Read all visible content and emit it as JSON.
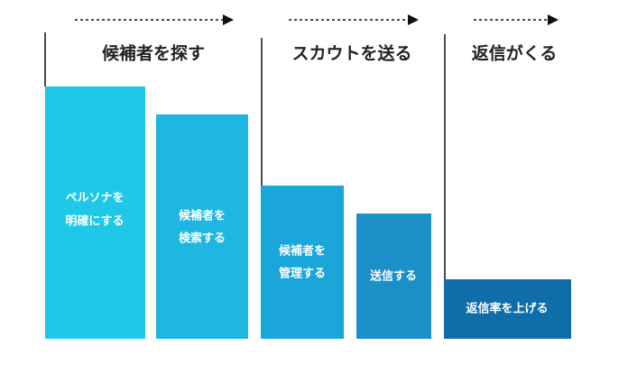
{
  "phases": [
    {
      "title": "候補者を探す"
    },
    {
      "title": "スカウトを送る"
    },
    {
      "title": "返信がくる"
    }
  ],
  "steps": [
    {
      "lines": [
        "ペルソナを",
        "明確にする"
      ]
    },
    {
      "lines": [
        "候補者を",
        "検索する"
      ]
    },
    {
      "lines": [
        "候補者を",
        "管理する"
      ]
    },
    {
      "lines": [
        "送信する"
      ]
    },
    {
      "lines": [
        "返信率を上げる"
      ]
    }
  ]
}
